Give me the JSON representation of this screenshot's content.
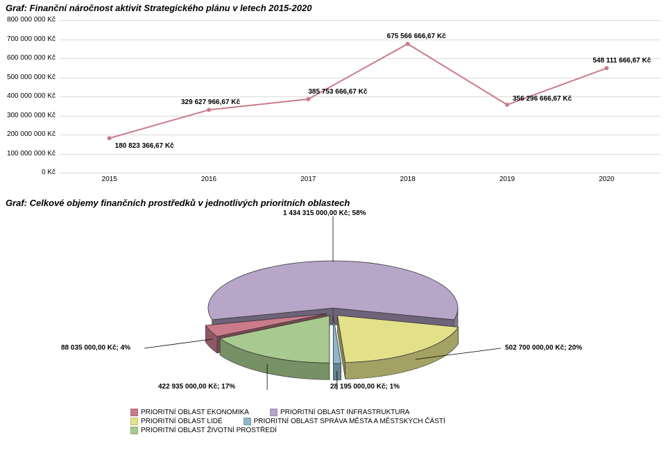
{
  "title": "Graf: Finanční náročnost aktivit Strategického plánu v letech 2015-2020",
  "line_chart": {
    "type": "line",
    "background_color": "#ffffff",
    "grid_color": "#d9d9d9",
    "line_color": "#c97b8a",
    "line_width": 2,
    "marker_color": "#c97b8a",
    "marker_size": 4,
    "y": {
      "min": 0,
      "max": 800000000,
      "step": 100000000,
      "labels": [
        "0 Kč",
        "100 000 000 Kč",
        "200 000 000 Kč",
        "300 000 000 Kč",
        "400 000 000 Kč",
        "500 000 000 Kč",
        "600 000 000 Kč",
        "700 000 000 Kč",
        "800 000 000 Kč"
      ]
    },
    "x": {
      "labels": [
        "2015",
        "2016",
        "2017",
        "2018",
        "2019",
        "2020"
      ]
    },
    "values": [
      180823366.67,
      329627966.67,
      385753666.67,
      675566666.67,
      356296666.67,
      548111666.67
    ],
    "value_labels": [
      "180 823 366,67 Kč",
      "329 627 966,67 Kč",
      "385 753 666,67 Kč",
      "675 566 666,67 Kč",
      "356 296 666,67 Kč",
      "548 111 666,67 Kč"
    ]
  },
  "subtitle": "Graf: Celkové objemy finančních prostředků v jednotlivých prioritních oblastech",
  "pie_chart": {
    "type": "pie_3d_exploded",
    "background_color": "#ffffff",
    "slices": [
      {
        "key": "infrastruktura",
        "label": "1 434 315 000,00 Kč; 58%",
        "pct": 58,
        "color": "#b8a6c9"
      },
      {
        "key": "lide",
        "label": "502 700 000,00 Kč; 20%",
        "pct": 20,
        "color": "#e3e08a"
      },
      {
        "key": "sprava",
        "label": "28 195 000,00 Kč; 1%",
        "pct": 1,
        "color": "#8fb6c9"
      },
      {
        "key": "zivotni",
        "label": "422 935 000,00 Kč; 17%",
        "pct": 17,
        "color": "#a8c98f"
      },
      {
        "key": "ekonomika",
        "label": "88 035 000,00 Kč; 4%",
        "pct": 4,
        "color": "#c97b8a"
      }
    ],
    "edge_color": "#333333",
    "depth": 24
  },
  "legend": {
    "items": [
      {
        "label": "PRIORITNÍ OBLAST EKONOMIKA",
        "color": "#c97b8a"
      },
      {
        "label": "PRIORITNÍ OBLAST INFRASTRUKTURA",
        "color": "#b8a6c9"
      },
      {
        "label": "PRIORITNÍ OBLAST LIDÉ",
        "color": "#e3e08a"
      },
      {
        "label": "PRIORITNÍ OBLAST SPRÁVA MĚSTA A MĚSTSKÝCH ČÁSTÍ",
        "color": "#8fb6c9"
      },
      {
        "label": "PRIORITNÍ OBLAST ŽIVOTNÍ PROSTŘEDÍ",
        "color": "#a8c98f"
      }
    ]
  }
}
